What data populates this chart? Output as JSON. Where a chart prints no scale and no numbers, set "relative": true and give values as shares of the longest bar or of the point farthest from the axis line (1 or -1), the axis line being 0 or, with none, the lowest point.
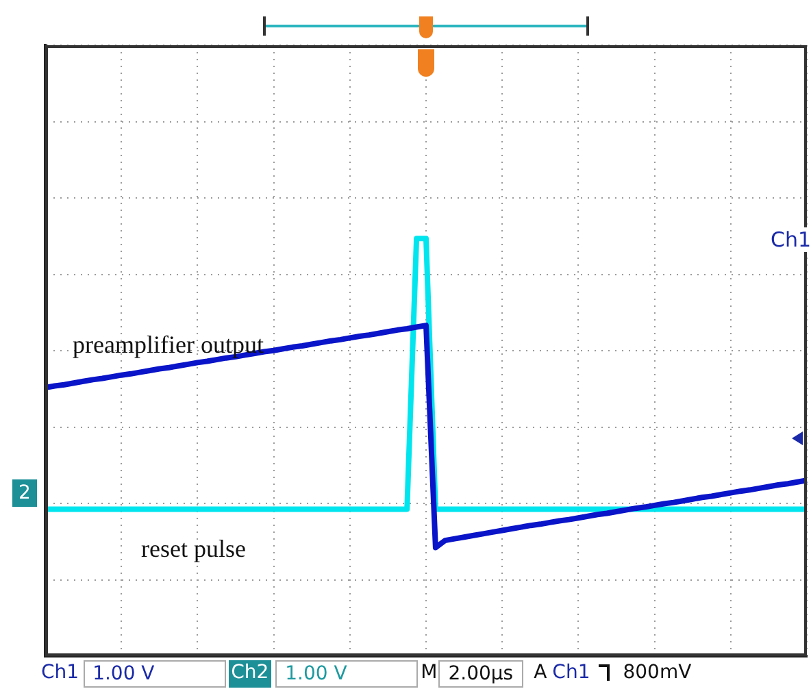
{
  "chart_data": {
    "type": "line",
    "relative": true,
    "categories": [
      null,
      null,
      null,
      null,
      null,
      null,
      null,
      null,
      null,
      null,
      null,
      null,
      null,
      null,
      null,
      null,
      null,
      null,
      null,
      null,
      null,
      null,
      null,
      null,
      null,
      null,
      null,
      null,
      null,
      null,
      null,
      null,
      null,
      null,
      null,
      null,
      null,
      null,
      null,
      null,
      null,
      null,
      null,
      null,
      null,
      null,
      null,
      null,
      null,
      null,
      null,
      null,
      null,
      null,
      null,
      null,
      null,
      null,
      null,
      null,
      null,
      null,
      null,
      null,
      null,
      null,
      null,
      null,
      null,
      null,
      null,
      null,
      null,
      null,
      null,
      null,
      null,
      null,
      null,
      null,
      null
    ],
    "tick_labels": false,
    "grid": true,
    "legend": false,
    "marker": "none",
    "line_style": "solid",
    "series": [
      {
        "name": "preamplifier output",
        "color": "#0a14c8",
        "values": [
          0.643,
          0.647,
          0.65,
          0.654,
          0.658,
          0.662,
          0.665,
          0.669,
          0.673,
          0.676,
          0.68,
          0.684,
          0.688,
          0.691,
          0.695,
          0.699,
          0.703,
          0.706,
          0.71,
          0.714,
          0.717,
          0.721,
          0.725,
          0.729,
          0.732,
          0.736,
          0.74,
          0.743,
          0.747,
          0.751,
          0.755,
          0.758,
          0.762,
          0.766,
          0.769,
          0.773,
          0.777,
          0.781,
          0.784,
          0.788,
          0.792,
          0.26,
          0.277,
          0.281,
          0.285,
          0.289,
          0.293,
          0.297,
          0.301,
          0.305,
          0.309,
          0.313,
          0.316,
          0.32,
          0.324,
          0.327,
          0.331,
          0.335,
          0.339,
          0.342,
          0.346,
          0.35,
          0.354,
          0.357,
          0.361,
          0.365,
          0.368,
          0.372,
          0.376,
          0.38,
          0.383,
          0.387,
          0.391,
          0.395,
          0.398,
          0.402,
          0.406,
          0.41,
          0.413,
          0.417,
          0.421
        ]
      },
      {
        "name": "reset pulse",
        "color": "#00e5ee",
        "values": [
          0.352,
          0.352,
          0.352,
          0.352,
          0.352,
          0.352,
          0.352,
          0.352,
          0.352,
          0.352,
          0.352,
          0.352,
          0.352,
          0.352,
          0.352,
          0.352,
          0.352,
          0.352,
          0.352,
          0.352,
          0.352,
          0.352,
          0.352,
          0.352,
          0.352,
          0.352,
          0.352,
          0.352,
          0.352,
          0.352,
          0.352,
          0.352,
          0.352,
          0.352,
          0.352,
          0.352,
          0.352,
          0.352,
          0.352,
          1,
          1,
          0.352,
          0.352,
          0.352,
          0.352,
          0.352,
          0.352,
          0.352,
          0.352,
          0.352,
          0.352,
          0.352,
          0.352,
          0.352,
          0.352,
          0.352,
          0.352,
          0.352,
          0.352,
          0.352,
          0.352,
          0.352,
          0.352,
          0.352,
          0.352,
          0.352,
          0.352,
          0.352,
          0.352,
          0.352,
          0.352,
          0.352,
          0.352,
          0.352,
          0.352,
          0.352,
          0.352,
          0.352,
          0.352,
          0.352,
          0.352
        ]
      }
    ],
    "annotations": [
      "Ch1",
      "2",
      "Ch1",
      "1.00 V",
      "Ch2",
      "1.00 V",
      "M",
      "2.00µs",
      "A",
      "Ch1",
      "800mV"
    ]
  }
}
